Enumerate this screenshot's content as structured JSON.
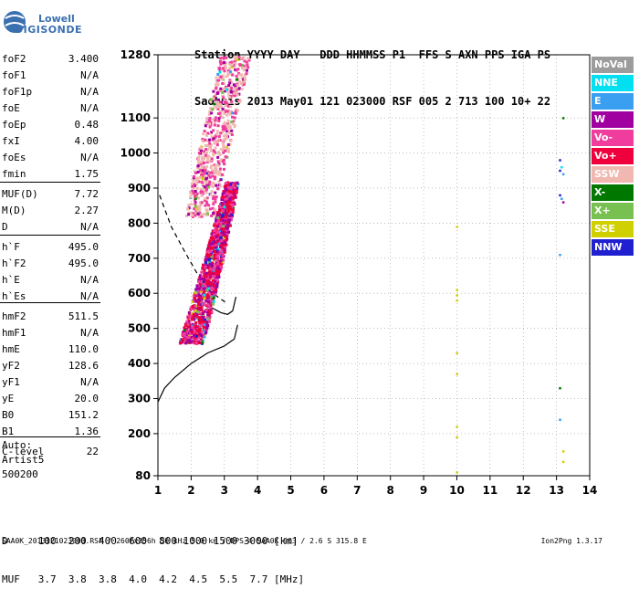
{
  "logo": {
    "line1": "Lowell",
    "line2": "DIGISONDE"
  },
  "header": {
    "row1": "Station YYYY DAY   DDD HHMMSS P1  FFS S AXN PPS IGA PS",
    "row2": "SaoLuis 2013 May01 121 023000 RSF 005 2 713 100 10+ 22"
  },
  "params_group1": [
    {
      "name": "foF2",
      "value": "3.400"
    },
    {
      "name": "foF1",
      "value": "N/A"
    },
    {
      "name": "foF1p",
      "value": "N/A"
    },
    {
      "name": "foE",
      "value": "N/A"
    },
    {
      "name": "foEp",
      "value": "0.48"
    },
    {
      "name": "fxI",
      "value": "4.00"
    },
    {
      "name": "foEs",
      "value": "N/A"
    },
    {
      "name": "fmin",
      "value": "1.75"
    }
  ],
  "params_group2": [
    {
      "name": "MUF(D)",
      "value": "7.72"
    },
    {
      "name": "M(D)",
      "value": "2.27"
    },
    {
      "name": "D",
      "value": "N/A"
    }
  ],
  "params_group3": [
    {
      "name": "h`F",
      "value": "495.0"
    },
    {
      "name": "h`F2",
      "value": "495.0"
    },
    {
      "name": "h`E",
      "value": "N/A"
    },
    {
      "name": "h`Es",
      "value": "N/A"
    }
  ],
  "params_group4": [
    {
      "name": "hmF2",
      "value": "511.5"
    },
    {
      "name": "hmF1",
      "value": "N/A"
    },
    {
      "name": "hmE",
      "value": "110.0"
    },
    {
      "name": "yF2",
      "value": "128.6"
    },
    {
      "name": "yF1",
      "value": "N/A"
    },
    {
      "name": "yE",
      "value": "20.0"
    },
    {
      "name": "B0",
      "value": "151.2"
    },
    {
      "name": "B1",
      "value": "1.36"
    }
  ],
  "params_group5": [
    {
      "name": "C-level",
      "value": "22"
    }
  ],
  "auto_lines": [
    "Auto:",
    "Artist5",
    "500200"
  ],
  "legend": [
    {
      "label": "NoVal",
      "color": "#9c9c9c"
    },
    {
      "label": "NNE",
      "color": "#00e0f0"
    },
    {
      "label": "E",
      "color": "#3a9ff0"
    },
    {
      "label": "W",
      "color": "#a000a0"
    },
    {
      "label": "Vo-",
      "color": "#f03c9c"
    },
    {
      "label": "Vo+",
      "color": "#f0003c"
    },
    {
      "label": "SSW",
      "color": "#f0b8b0"
    },
    {
      "label": "X-",
      "color": "#007800"
    },
    {
      "label": "X+",
      "color": "#78c050"
    },
    {
      "label": "SSE",
      "color": "#d0d000"
    },
    {
      "label": "NNW",
      "color": "#2020d0"
    }
  ],
  "bottom": {
    "d_row": "D     100  200  400  600  800 1000 1500 3000 [km]",
    "muf_row": "MUF   3.7  3.8  3.8  4.0  4.2  4.5  5.5  7.7 [MHz]"
  },
  "footer": {
    "left": "SAA0K_2013121023000.RSF / 260fx256h 50 kHz 5.0 km / DPS-4 SAA0K 903 / 2.6 S 315.8 E",
    "right": "Ion2Png 1.3.17"
  },
  "chart_data": {
    "type": "scatter",
    "title": "",
    "xlabel": "",
    "ylabel": "",
    "xlim": [
      1,
      14
    ],
    "ylim": [
      80,
      1280
    ],
    "x_ticks": [
      1,
      2,
      3,
      4,
      5,
      6,
      7,
      8,
      9,
      10,
      11,
      12,
      13,
      14
    ],
    "y_ticks": [
      80,
      200,
      300,
      400,
      500,
      600,
      700,
      800,
      900,
      1000,
      1100,
      1280
    ],
    "clusters": [
      {
        "name": "F2 main echo trace",
        "x_range": [
          1.9,
          3.4
        ],
        "y_range": [
          460,
          900
        ],
        "dominant_colors": [
          "#f0003c",
          "#a000a0",
          "#f03c9c"
        ]
      },
      {
        "name": "upper SSW spread",
        "x_range": [
          2.0,
          4.5
        ],
        "y_range": [
          800,
          1280
        ],
        "dominant_colors": [
          "#f0b8b0",
          "#f03c9c"
        ]
      }
    ],
    "isolated_points": [
      {
        "x": 10.0,
        "y": 790,
        "color": "#d0d000"
      },
      {
        "x": 10.0,
        "y": 610,
        "color": "#d0d000"
      },
      {
        "x": 10.0,
        "y": 595,
        "color": "#d0d000"
      },
      {
        "x": 10.0,
        "y": 580,
        "color": "#d0d000"
      },
      {
        "x": 10.0,
        "y": 430,
        "color": "#d0d000"
      },
      {
        "x": 10.0,
        "y": 370,
        "color": "#d0d000"
      },
      {
        "x": 10.0,
        "y": 220,
        "color": "#d0d000"
      },
      {
        "x": 10.0,
        "y": 190,
        "color": "#d0d000"
      },
      {
        "x": 10.0,
        "y": 90,
        "color": "#d0d000"
      },
      {
        "x": 13.2,
        "y": 1100,
        "color": "#007800"
      },
      {
        "x": 13.1,
        "y": 980,
        "color": "#2020d0"
      },
      {
        "x": 13.15,
        "y": 960,
        "color": "#00e0f0"
      },
      {
        "x": 13.1,
        "y": 950,
        "color": "#2020d0"
      },
      {
        "x": 13.2,
        "y": 940,
        "color": "#3a9ff0"
      },
      {
        "x": 13.1,
        "y": 880,
        "color": "#2020d0"
      },
      {
        "x": 13.15,
        "y": 870,
        "color": "#3a9ff0"
      },
      {
        "x": 13.2,
        "y": 860,
        "color": "#a000a0"
      },
      {
        "x": 13.1,
        "y": 710,
        "color": "#3a9ff0"
      },
      {
        "x": 13.1,
        "y": 330,
        "color": "#007800"
      },
      {
        "x": 13.1,
        "y": 240,
        "color": "#3a9ff0"
      },
      {
        "x": 13.2,
        "y": 150,
        "color": "#d0d000"
      },
      {
        "x": 13.2,
        "y": 120,
        "color": "#d0d000"
      }
    ],
    "profile_curve": [
      [
        1.0,
        290
      ],
      [
        1.2,
        330
      ],
      [
        1.5,
        360
      ],
      [
        2.0,
        400
      ],
      [
        2.5,
        430
      ],
      [
        3.0,
        450
      ],
      [
        3.3,
        470
      ],
      [
        3.4,
        510
      ]
    ],
    "dashed_curve": [
      [
        1.05,
        880
      ],
      [
        1.4,
        790
      ],
      [
        1.8,
        720
      ],
      [
        2.1,
        670
      ],
      [
        2.4,
        620
      ],
      [
        2.8,
        590
      ],
      [
        3.1,
        570
      ]
    ],
    "lower_trace": [
      [
        2.6,
        560
      ],
      [
        2.9,
        545
      ],
      [
        3.1,
        540
      ],
      [
        3.25,
        550
      ],
      [
        3.35,
        590
      ]
    ]
  }
}
